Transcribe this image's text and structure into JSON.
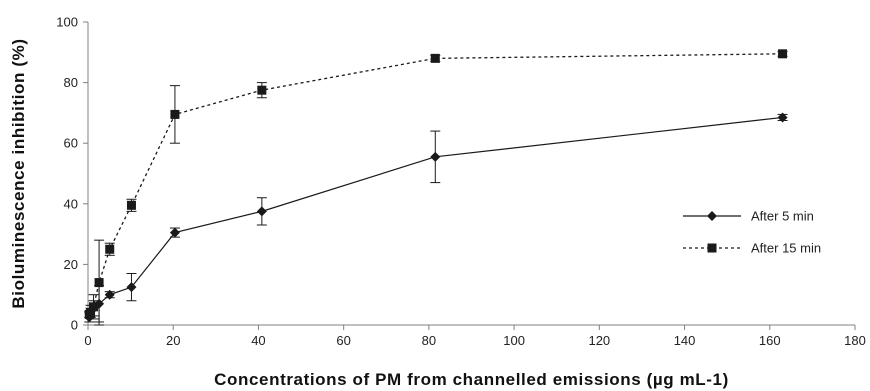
{
  "chart_data": {
    "type": "line",
    "xlabel": "Concentrations of PM from channelled emissions (µg mL-1)",
    "ylabel": "Bioluminescence inhibition (%)",
    "xlim": [
      0,
      180
    ],
    "ylim": [
      0,
      100
    ],
    "xticks": [
      "0",
      "20",
      "40",
      "60",
      "80",
      "100",
      "120",
      "140",
      "160",
      "180"
    ],
    "yticks": [
      "0",
      "20",
      "40",
      "60",
      "80",
      "100"
    ],
    "grid": false,
    "legend_position": "right",
    "series": [
      {
        "name": "After 5 min",
        "marker": "diamond",
        "line_style": "solid",
        "color": "#1a1a1a",
        "points": [
          {
            "x": 0.3,
            "y": 2.5,
            "err": 1.5
          },
          {
            "x": 0.6,
            "y": 4.5,
            "err": 2.0
          },
          {
            "x": 1.3,
            "y": 5.5,
            "err": 2.5
          },
          {
            "x": 2.6,
            "y": 7.0,
            "err": 6.0
          },
          {
            "x": 5.1,
            "y": 10.0,
            "err": 1.0
          },
          {
            "x": 10.2,
            "y": 12.5,
            "err": 4.5
          },
          {
            "x": 20.4,
            "y": 30.5,
            "err": 1.5
          },
          {
            "x": 40.8,
            "y": 37.5,
            "err": 4.5
          },
          {
            "x": 81.5,
            "y": 55.5,
            "err": 8.5
          },
          {
            "x": 163,
            "y": 68.5,
            "err": 1.0
          }
        ]
      },
      {
        "name": "After 15 min",
        "marker": "square",
        "line_style": "dashed",
        "color": "#1a1a1a",
        "points": [
          {
            "x": 0.3,
            "y": 3.5,
            "err": 1.0
          },
          {
            "x": 0.6,
            "y": 4.0,
            "err": 1.5
          },
          {
            "x": 1.3,
            "y": 6.0,
            "err": 4.0
          },
          {
            "x": 2.6,
            "y": 14.0,
            "err": 14.0
          },
          {
            "x": 5.1,
            "y": 25.0,
            "err": 2.0
          },
          {
            "x": 10.2,
            "y": 39.5,
            "err": 2.0
          },
          {
            "x": 20.4,
            "y": 69.5,
            "err": 9.5
          },
          {
            "x": 40.8,
            "y": 77.5,
            "err": 2.5
          },
          {
            "x": 81.5,
            "y": 88.0,
            "err": 1.0
          },
          {
            "x": 163,
            "y": 89.5,
            "err": 0.8
          }
        ]
      }
    ]
  }
}
